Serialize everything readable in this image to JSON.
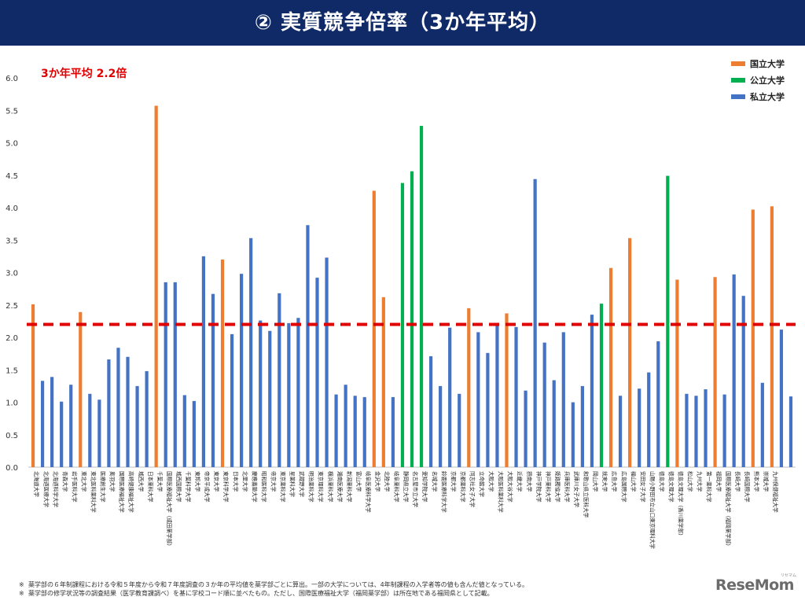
{
  "header": {
    "title": "② 実質競争倍率（3か年平均）"
  },
  "annotation": {
    "avg_label": "3か年平均  2.2倍"
  },
  "legend": [
    {
      "label": "国立大学",
      "color": "#ed7d31"
    },
    {
      "label": "公立大学",
      "color": "#00b050"
    },
    {
      "label": "私立大学",
      "color": "#4472c4"
    }
  ],
  "footnotes": [
    {
      "mark": "※",
      "text": "薬学部の６年制課程における令和５年度から令和７年度調査の３か年の平均値を薬学部ごとに算出。一部の大学については、4年制課程の入学者等の値も含んだ値となっている。"
    },
    {
      "mark": "※",
      "text": "薬学部の修学状況等の調査結果（医学教育課調べ）を基に学校コード順に並べたもの。ただし、国際医療福祉大学（福岡薬学部）は所在地である福岡県として記載。"
    }
  ],
  "logo": {
    "text": "ReseMom",
    "sub": "リセマム"
  },
  "colors": {
    "national": "#ed7d31",
    "public": "#00b050",
    "private": "#4472c4",
    "avg_line": "#e00000"
  },
  "chart_data": {
    "type": "bar",
    "title": "② 実質競争倍率（3か年平均）",
    "xlabel": "",
    "ylabel": "",
    "ylim": [
      0,
      6.0
    ],
    "yticks": [
      "0.0",
      "0.5",
      "1.0",
      "1.5",
      "2.0",
      "2.5",
      "3.0",
      "3.5",
      "4.0",
      "4.5",
      "5.0",
      "5.5",
      "6.0"
    ],
    "average": 2.2,
    "grid": false,
    "legend_position": "top-right",
    "bars": [
      {
        "label": "北海道大学",
        "value": 2.51,
        "type": "national"
      },
      {
        "label": "北海道医療大学",
        "value": 1.33,
        "type": "private"
      },
      {
        "label": "北海道科学大学",
        "value": 1.39,
        "type": "private"
      },
      {
        "label": "青森大学",
        "value": 1.01,
        "type": "private"
      },
      {
        "label": "岩手医科大学",
        "value": 1.27,
        "type": "private"
      },
      {
        "label": "東北大学",
        "value": 2.39,
        "type": "national"
      },
      {
        "label": "東北医科薬科大学",
        "value": 1.13,
        "type": "private"
      },
      {
        "label": "医療創生大学",
        "value": 1.04,
        "type": "private"
      },
      {
        "label": "奥羽大学",
        "value": 1.66,
        "type": "private"
      },
      {
        "label": "国際医療福祉大学",
        "value": 1.84,
        "type": "private"
      },
      {
        "label": "高崎健康福祉大学",
        "value": 1.7,
        "type": "private"
      },
      {
        "label": "城西大学",
        "value": 1.25,
        "type": "private"
      },
      {
        "label": "日本薬科大学",
        "value": 1.48,
        "type": "private"
      },
      {
        "label": "千葉大学",
        "value": 5.57,
        "type": "national"
      },
      {
        "label": "国際医療福祉大学（成田薬学部）",
        "value": 2.85,
        "type": "private"
      },
      {
        "label": "城西国際大学",
        "value": 2.85,
        "type": "private"
      },
      {
        "label": "千葉科学大学",
        "value": 1.11,
        "type": "private"
      },
      {
        "label": "東邦大学",
        "value": 1.02,
        "type": "private"
      },
      {
        "label": "帝京平成大学",
        "value": 3.25,
        "type": "private"
      },
      {
        "label": "東京大学",
        "value": 2.67,
        "type": "private"
      },
      {
        "label": "東京科学大学",
        "value": 3.2,
        "type": "national"
      },
      {
        "label": "日本大学",
        "value": 2.05,
        "type": "private"
      },
      {
        "label": "北里大学",
        "value": 2.98,
        "type": "private"
      },
      {
        "label": "慶應義塾大学",
        "value": 3.53,
        "type": "private"
      },
      {
        "label": "昭和医科大学",
        "value": 2.26,
        "type": "private"
      },
      {
        "label": "帝京大学",
        "value": 2.1,
        "type": "private"
      },
      {
        "label": "東京薬科大学",
        "value": 2.68,
        "type": "private"
      },
      {
        "label": "星薬科大学",
        "value": 2.22,
        "type": "private"
      },
      {
        "label": "武蔵野大学",
        "value": 2.3,
        "type": "private"
      },
      {
        "label": "明治薬科大学",
        "value": 3.73,
        "type": "private"
      },
      {
        "label": "東京理科大学",
        "value": 2.92,
        "type": "private"
      },
      {
        "label": "横浜薬科大学",
        "value": 3.23,
        "type": "private"
      },
      {
        "label": "湘南医療大学",
        "value": 1.12,
        "type": "private"
      },
      {
        "label": "新潟薬科大学",
        "value": 1.27,
        "type": "private"
      },
      {
        "label": "富山大学",
        "value": 1.1,
        "type": "private"
      },
      {
        "label": "岐阜医療科学大学",
        "value": 1.08,
        "type": "private"
      },
      {
        "label": "金沢大学",
        "value": 4.26,
        "type": "national"
      },
      {
        "label": "北陸大学",
        "value": 2.62,
        "type": "national"
      },
      {
        "label": "岐阜薬科大学",
        "value": 1.08,
        "type": "private"
      },
      {
        "label": "静岡県立大学",
        "value": 4.38,
        "type": "public"
      },
      {
        "label": "名古屋市立大学",
        "value": 4.56,
        "type": "public"
      },
      {
        "label": "愛知学院大学",
        "value": 5.26,
        "type": "public"
      },
      {
        "label": "名城大学",
        "value": 1.71,
        "type": "private"
      },
      {
        "label": "鈴鹿医療科学大学",
        "value": 1.25,
        "type": "private"
      },
      {
        "label": "京都大学",
        "value": 2.15,
        "type": "private"
      },
      {
        "label": "京都薬科大学",
        "value": 1.13,
        "type": "private"
      },
      {
        "label": "同志社女子大学",
        "value": 2.45,
        "type": "national"
      },
      {
        "label": "立命館大学",
        "value": 2.08,
        "type": "private"
      },
      {
        "label": "大阪大学",
        "value": 1.76,
        "type": "private"
      },
      {
        "label": "大阪医科薬科大学",
        "value": 2.18,
        "type": "private"
      },
      {
        "label": "大阪大谷大学",
        "value": 2.37,
        "type": "national"
      },
      {
        "label": "近畿大学",
        "value": 2.16,
        "type": "private"
      },
      {
        "label": "摂南大学",
        "value": 1.18,
        "type": "private"
      },
      {
        "label": "神戸学院大学",
        "value": 4.44,
        "type": "private"
      },
      {
        "label": "神戸薬科大学",
        "value": 1.92,
        "type": "private"
      },
      {
        "label": "姫路獨協大学",
        "value": 1.34,
        "type": "private"
      },
      {
        "label": "兵庫医科大学",
        "value": 2.08,
        "type": "private"
      },
      {
        "label": "武庫川女子大学",
        "value": 1.0,
        "type": "private"
      },
      {
        "label": "和歌山県立医科大学",
        "value": 1.25,
        "type": "private"
      },
      {
        "label": "岡山大学",
        "value": 2.35,
        "type": "private"
      },
      {
        "label": "就実大学",
        "value": 2.52,
        "type": "public"
      },
      {
        "label": "広島大学",
        "value": 3.07,
        "type": "national"
      },
      {
        "label": "広島国際大学",
        "value": 1.1,
        "type": "private"
      },
      {
        "label": "福山大学",
        "value": 3.53,
        "type": "national"
      },
      {
        "label": "安田女子大学",
        "value": 1.21,
        "type": "private"
      },
      {
        "label": "山陽小野田市立山口東京理科大学",
        "value": 1.46,
        "type": "private"
      },
      {
        "label": "徳島大学",
        "value": 1.94,
        "type": "private"
      },
      {
        "label": "徳島文理大学",
        "value": 4.49,
        "type": "public"
      },
      {
        "label": "徳島文理大学（香川薬学部）",
        "value": 2.89,
        "type": "national"
      },
      {
        "label": "松山大学",
        "value": 1.13,
        "type": "private"
      },
      {
        "label": "九州大学",
        "value": 1.1,
        "type": "private"
      },
      {
        "label": "第一薬科大学",
        "value": 1.2,
        "type": "private"
      },
      {
        "label": "福岡大学",
        "value": 2.93,
        "type": "national"
      },
      {
        "label": "国際医療福祉大学（福岡薬学部）",
        "value": 1.12,
        "type": "private"
      },
      {
        "label": "長崎大学",
        "value": 2.97,
        "type": "private"
      },
      {
        "label": "長崎国際大学",
        "value": 2.64,
        "type": "private"
      },
      {
        "label": "熊本大学",
        "value": 3.97,
        "type": "national"
      },
      {
        "label": "崇城大学",
        "value": 1.3,
        "type": "private"
      },
      {
        "label": "九州保健福祉大学",
        "value": 4.02,
        "type": "national"
      },
      {
        "label": "",
        "value": 2.12,
        "type": "private"
      },
      {
        "label": "",
        "value": 1.09,
        "type": "private"
      }
    ]
  }
}
